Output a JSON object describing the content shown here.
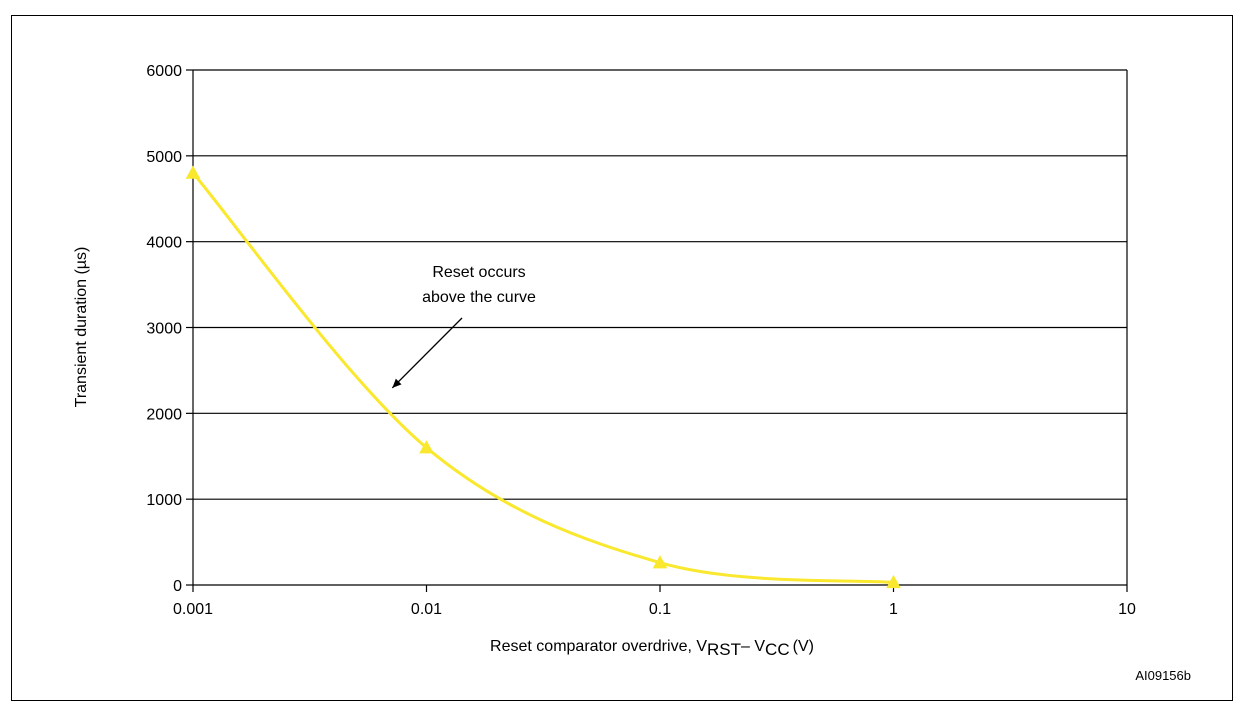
{
  "chart_data": {
    "type": "line",
    "xscale": "log",
    "x": [
      0.001,
      0.01,
      0.1,
      1
    ],
    "series": [
      {
        "values": [
          4800,
          1600,
          260,
          30
        ],
        "color": "#f9e82d",
        "marker": "triangle"
      }
    ],
    "xticks": [
      "0.001",
      "0.01",
      "0.1",
      "1",
      "10"
    ],
    "xtick_values": [
      0.001,
      0.01,
      0.1,
      1,
      10
    ],
    "yticks": [
      "0",
      "1000",
      "2000",
      "3000",
      "4000",
      "5000",
      "6000"
    ],
    "ytick_values": [
      0,
      1000,
      2000,
      3000,
      4000,
      5000,
      6000
    ],
    "xlim": [
      0.001,
      10
    ],
    "ylim": [
      0,
      6000
    ],
    "grid": "horizontal",
    "xlabel": {
      "prefix": "Reset comparator overdrive, V",
      "sub1": "RST",
      "middle": "– V",
      "sub2": "CC",
      "suffix": "(V)"
    },
    "ylabel": "Transient  duration (µs)",
    "annotation": {
      "lines": [
        "Reset occurs",
        "above the curve"
      ],
      "arrow_target": [
        0.007,
        2250
      ]
    },
    "figure_id": "AI09156b"
  }
}
